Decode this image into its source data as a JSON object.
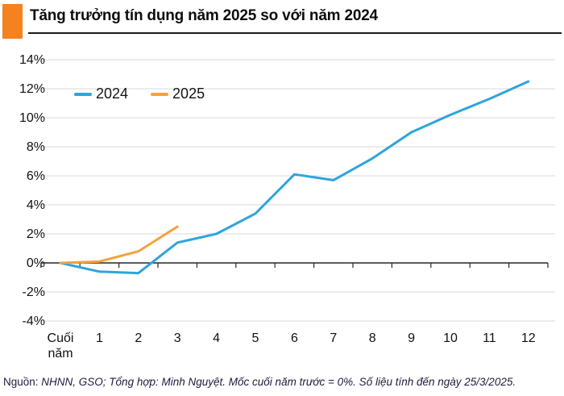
{
  "header": {
    "title": "Tăng trưởng tín dụng năm 2025 so với năm 2024"
  },
  "colors": {
    "accent_orange": "#F5821F",
    "series_2024_blue": "#2FA4DB",
    "series_2025_orange": "#F5A23C",
    "gridline": "#d9d9d9",
    "axis": "#262626"
  },
  "footer": {
    "source_prefix": "Nguồn:",
    "source_text": " NHNN, GSO; Tổng hợp: Minh Nguyệt. Mốc cuối năm trước = 0%.  Số liệu tính đến ngày 25/3/2025."
  },
  "chart_data": {
    "type": "line",
    "title": "Tăng trưởng tín dụng năm 2025 so với năm 2024",
    "categories": [
      "Cuối năm",
      "1",
      "2",
      "3",
      "4",
      "5",
      "6",
      "7",
      "8",
      "9",
      "10",
      "11",
      "12"
    ],
    "series": [
      {
        "name": "2024",
        "color": "#2FA4DB",
        "values": [
          0,
          -0.6,
          -0.7,
          1.4,
          2.0,
          3.4,
          6.1,
          5.7,
          7.2,
          9.0,
          10.2,
          11.3,
          12.5
        ]
      },
      {
        "name": "2025",
        "color": "#F5A23C",
        "values": [
          0,
          0.1,
          0.8,
          2.5
        ]
      }
    ],
    "y_ticks": [
      14,
      12,
      10,
      8,
      6,
      4,
      2,
      0,
      -2,
      -4
    ],
    "y_tick_suffix": "%",
    "ylim": [
      -4,
      14
    ],
    "xlabel": "",
    "ylabel": "",
    "grid": "horizontal",
    "legend_position": "top-left",
    "baseline_note": "Mốc cuối năm trước = 0%"
  }
}
